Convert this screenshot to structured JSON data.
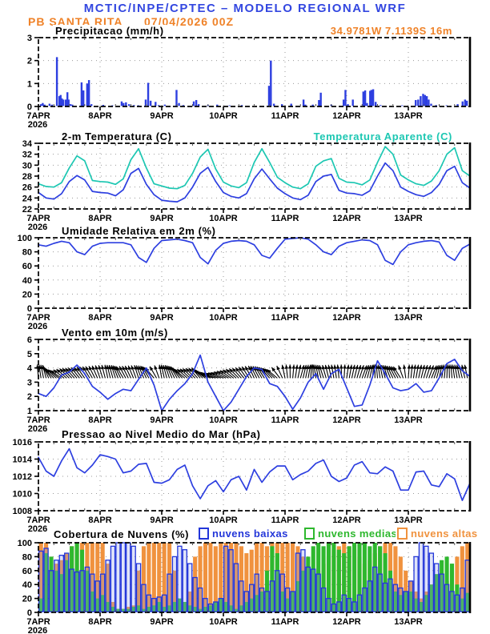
{
  "header": {
    "title": "MCTIC/INPE/CPTEC – MODELO REGIONAL WRF",
    "station": "PB SANTA RITA",
    "run": "07/04/2026 00Z"
  },
  "colors": {
    "header_blue": "#3347e0",
    "orange_text": "#ef8228",
    "line_blue": "#2d3fe0",
    "cyan": "#1cc7b2",
    "cloud_low_blue": "#2336d9",
    "cloud_mid_green": "#2eb82e",
    "cloud_high_orange": "#f0923e",
    "grid_gray": "#999999",
    "frame_black": "#000000"
  },
  "x_axis": {
    "tick_labels": [
      "7APR",
      "8APR",
      "9APR",
      "10APR",
      "11APR",
      "12APR",
      "13APR"
    ],
    "year": "2026",
    "days": 7
  },
  "chart_data": [
    {
      "id": "precipitation",
      "type": "bar",
      "title": "Precipitacao (mm/h)",
      "annotation": "34.9781W 7.1139S 16m",
      "ylim": [
        0,
        3
      ],
      "yticks": [
        0,
        1,
        2,
        3
      ],
      "bars_t_days_value_mmh": [
        [
          0.04,
          0.1
        ],
        [
          0.07,
          0.15
        ],
        [
          0.1,
          0.08
        ],
        [
          0.18,
          0.12
        ],
        [
          0.22,
          0.08
        ],
        [
          0.3,
          2.15
        ],
        [
          0.34,
          0.45
        ],
        [
          0.36,
          0.5
        ],
        [
          0.38,
          0.35
        ],
        [
          0.4,
          0.3
        ],
        [
          0.44,
          0.3
        ],
        [
          0.47,
          0.62
        ],
        [
          0.49,
          0.3
        ],
        [
          0.52,
          0.1
        ],
        [
          0.55,
          0.08
        ],
        [
          0.7,
          1.05
        ],
        [
          0.73,
          0.7
        ],
        [
          0.79,
          1.0
        ],
        [
          0.82,
          1.15
        ],
        [
          0.86,
          0.1
        ],
        [
          1.05,
          0.07
        ],
        [
          1.2,
          0.05
        ],
        [
          1.35,
          0.22
        ],
        [
          1.38,
          0.15
        ],
        [
          1.42,
          0.18
        ],
        [
          1.47,
          0.1
        ],
        [
          1.55,
          0.06
        ],
        [
          1.62,
          0.05
        ],
        [
          1.74,
          0.3
        ],
        [
          1.78,
          1.03
        ],
        [
          1.82,
          0.25
        ],
        [
          1.9,
          0.2
        ],
        [
          1.95,
          0.06
        ],
        [
          2.05,
          0.08
        ],
        [
          2.24,
          0.72
        ],
        [
          2.28,
          0.15
        ],
        [
          2.35,
          0.06
        ],
        [
          2.52,
          0.22
        ],
        [
          2.56,
          0.28
        ],
        [
          2.6,
          0.1
        ],
        [
          2.75,
          0.06
        ],
        [
          2.9,
          0.08
        ],
        [
          3.1,
          0.05
        ],
        [
          3.3,
          0.06
        ],
        [
          3.74,
          0.9
        ],
        [
          3.77,
          2.0
        ],
        [
          3.82,
          0.12
        ],
        [
          3.95,
          0.1
        ],
        [
          4.1,
          0.12
        ],
        [
          4.3,
          0.3
        ],
        [
          4.33,
          0.08
        ],
        [
          4.45,
          0.08
        ],
        [
          4.55,
          0.28
        ],
        [
          4.58,
          0.6
        ],
        [
          4.75,
          0.08
        ],
        [
          4.95,
          0.3
        ],
        [
          4.98,
          0.72
        ],
        [
          5.02,
          0.1
        ],
        [
          5.1,
          0.3
        ],
        [
          5.27,
          0.65
        ],
        [
          5.3,
          0.7
        ],
        [
          5.33,
          0.15
        ],
        [
          5.38,
          0.68
        ],
        [
          5.4,
          0.72
        ],
        [
          5.43,
          0.75
        ],
        [
          5.47,
          0.2
        ],
        [
          5.55,
          0.06
        ],
        [
          5.9,
          0.05
        ],
        [
          6.12,
          0.28
        ],
        [
          6.16,
          0.3
        ],
        [
          6.2,
          0.45
        ],
        [
          6.24,
          0.55
        ],
        [
          6.27,
          0.5
        ],
        [
          6.3,
          0.45
        ],
        [
          6.33,
          0.3
        ],
        [
          6.37,
          0.12
        ],
        [
          6.45,
          0.06
        ],
        [
          6.62,
          0.05
        ],
        [
          6.8,
          0.1
        ],
        [
          6.88,
          0.22
        ],
        [
          6.92,
          0.3
        ],
        [
          6.95,
          0.25
        ]
      ]
    },
    {
      "id": "temperature",
      "type": "line",
      "title": "2-m Temperatura (C)",
      "title2": "Temperatura Aparente (C)",
      "ylim": [
        22,
        34
      ],
      "yticks": [
        22,
        24,
        26,
        28,
        30,
        32,
        34
      ],
      "step_hours": 3,
      "series": [
        {
          "name": "2-m Temperatura (C)",
          "color": "line_blue",
          "values": [
            25.0,
            24.0,
            23.8,
            24.8,
            27.0,
            28.1,
            27.3,
            25.2,
            25.0,
            24.9,
            24.4,
            25.5,
            28.5,
            29.4,
            26.5,
            24.6,
            23.6,
            23.4,
            23.3,
            24.0,
            26.0,
            28.5,
            29.6,
            27.0,
            25.0,
            24.3,
            24.0,
            24.8,
            27.5,
            29.3,
            27.5,
            25.8,
            24.8,
            24.0,
            23.7,
            24.5,
            27.0,
            28.0,
            28.3,
            25.4,
            24.9,
            24.8,
            24.5,
            25.3,
            28.0,
            30.4,
            29.0,
            26.0,
            25.2,
            24.6,
            24.3,
            25.0,
            26.5,
            29.0,
            29.8,
            26.8,
            25.8
          ]
        },
        {
          "name": "Temperatura Aparente (C)",
          "color": "cyan",
          "values": [
            26.6,
            26.1,
            26.0,
            26.8,
            29.5,
            31.7,
            30.8,
            27.2,
            27.0,
            26.9,
            26.5,
            27.5,
            31.0,
            33.0,
            29.5,
            26.6,
            26.2,
            25.8,
            25.7,
            26.3,
            28.5,
            31.5,
            32.9,
            29.3,
            26.9,
            26.2,
            25.9,
            26.8,
            30.5,
            33.0,
            30.5,
            27.8,
            26.8,
            26.0,
            25.7,
            26.6,
            29.8,
            30.8,
            31.2,
            27.6,
            26.9,
            26.8,
            26.4,
            27.3,
            30.5,
            33.4,
            32.0,
            28.2,
            27.3,
            26.6,
            26.3,
            27.1,
            29.0,
            32.0,
            33.2,
            29.0,
            28.0
          ]
        }
      ]
    },
    {
      "id": "humidity",
      "type": "line",
      "title": "Umidade Relativa em 2m (%)",
      "ylim": [
        0,
        100
      ],
      "yticks": [
        0,
        20,
        40,
        60,
        80,
        100
      ],
      "step_hours": 3,
      "series": [
        {
          "name": "Umidade Relativa em 2m (%)",
          "color": "line_blue",
          "values": [
            90,
            88,
            92,
            95,
            93,
            80,
            76,
            88,
            92,
            93,
            93,
            93,
            90,
            72,
            65,
            85,
            96,
            97,
            98,
            96,
            93,
            72,
            63,
            82,
            92,
            95,
            96,
            95,
            90,
            75,
            71,
            85,
            98,
            99,
            100,
            98,
            90,
            80,
            76,
            88,
            93,
            95,
            97,
            96,
            90,
            68,
            62,
            80,
            90,
            93,
            95,
            96,
            94,
            75,
            68,
            85,
            91
          ]
        }
      ]
    },
    {
      "id": "wind",
      "type": "line",
      "title": "Vento em 10m (m/s)",
      "ylim": [
        1,
        6
      ],
      "yticks": [
        1,
        2,
        3,
        4,
        5,
        6
      ],
      "step_hours": 3,
      "arrow_baseline_value": 3.45,
      "arrow_angles_deg": [
        -5,
        -15,
        -45,
        -55,
        -45,
        -40,
        -35,
        -30,
        -20,
        -12,
        -18,
        -30,
        -25,
        -18,
        -25,
        -40,
        -10,
        -18,
        -30,
        -50,
        -45,
        -40,
        -60,
        -70,
        -65,
        -55,
        -45,
        -35,
        -25,
        -30,
        -40,
        -50,
        -12,
        5,
        15,
        10,
        -8,
        -18,
        -12,
        -6,
        8,
        14,
        20,
        12,
        -5,
        -15,
        -25,
        -32,
        4,
        10,
        16,
        22,
        12,
        2,
        -8,
        -14,
        -10
      ],
      "series": [
        {
          "name": "Vento em 10m (m/s)",
          "color": "line_blue",
          "values": [
            2.2,
            2.0,
            2.6,
            3.5,
            3.7,
            4.2,
            3.6,
            2.7,
            2.3,
            1.8,
            2.2,
            2.5,
            2.4,
            3.2,
            4.0,
            2.8,
            1.0,
            1.8,
            2.4,
            2.9,
            3.6,
            4.9,
            3.0,
            2.0,
            1.0,
            1.6,
            2.5,
            3.4,
            4.0,
            3.9,
            2.9,
            2.7,
            2.0,
            1.1,
            1.9,
            3.0,
            3.6,
            2.5,
            3.6,
            3.9,
            2.6,
            1.3,
            1.4,
            2.8,
            4.5,
            3.6,
            2.6,
            2.4,
            2.5,
            2.9,
            2.3,
            2.4,
            3.3,
            4.3,
            4.6,
            3.8,
            3.4
          ]
        }
      ]
    },
    {
      "id": "pressure",
      "type": "line",
      "title": "Pressao ao Nivel Medio do Mar (hPa)",
      "ylim": [
        1008,
        1016
      ],
      "yticks": [
        1008,
        1010,
        1012,
        1014,
        1016
      ],
      "step_hours": 3,
      "series": [
        {
          "name": "Pressao ao Nivel Medio do Mar (hPa)",
          "color": "line_blue",
          "values": [
            1014.2,
            1012.6,
            1012.0,
            1013.8,
            1015.2,
            1013.0,
            1012.4,
            1013.3,
            1014.5,
            1014.3,
            1014.0,
            1012.4,
            1012.6,
            1013.4,
            1013.5,
            1011.3,
            1011.2,
            1011.6,
            1012.8,
            1013.3,
            1010.9,
            1009.4,
            1010.9,
            1011.5,
            1010.2,
            1011.6,
            1012.0,
            1010.4,
            1012.8,
            1011.3,
            1012.5,
            1013.2,
            1013.2,
            1011.6,
            1012.2,
            1012.6,
            1013.5,
            1013.9,
            1012.0,
            1011.4,
            1011.8,
            1013.3,
            1013.7,
            1012.4,
            1012.3,
            1013.1,
            1012.6,
            1010.4,
            1010.4,
            1012.5,
            1012.6,
            1011.0,
            1010.8,
            1012.3,
            1011.7,
            1009.2,
            1011.2
          ]
        }
      ]
    },
    {
      "id": "cloud_cover",
      "type": "bar",
      "title": "Cobertura de Nuvens (%)",
      "ylim": [
        0,
        100
      ],
      "yticks": [
        0,
        20,
        40,
        60,
        80,
        100
      ],
      "step_hours": 2,
      "legend": [
        {
          "label": "nuvens baixas",
          "color": "cloud_low_blue",
          "style": "outline"
        },
        {
          "label": "nuvens medias",
          "color": "cloud_mid_green",
          "style": "fill"
        },
        {
          "label": "nuvens altas",
          "color": "cloud_high_orange",
          "style": "fill"
        }
      ],
      "series": [
        {
          "name": "nuvens baixas",
          "color": "cloud_low_blue",
          "style": "outline",
          "values": [
            88,
            92,
            60,
            75,
            82,
            85,
            62,
            58,
            60,
            65,
            55,
            45,
            55,
            75,
            95,
            100,
            100,
            100,
            95,
            70,
            40,
            25,
            20,
            22,
            25,
            55,
            80,
            95,
            90,
            70,
            50,
            35,
            20,
            12,
            15,
            20,
            95,
            90,
            70,
            45,
            30,
            40,
            55,
            35,
            30,
            45,
            60,
            55,
            35,
            30,
            85,
            90,
            65,
            62,
            55,
            35,
            20,
            12,
            15,
            25,
            20,
            15,
            25,
            35,
            45,
            65,
            55,
            42,
            48,
            40,
            35,
            30,
            45,
            80,
            100,
            95,
            85,
            70,
            55,
            40,
            30,
            25,
            35,
            75
          ]
        },
        {
          "name": "nuvens medias",
          "color": "cloud_mid_green",
          "style": "fill",
          "values": [
            20,
            85,
            80,
            60,
            55,
            75,
            95,
            100,
            90,
            60,
            30,
            20,
            25,
            15,
            8,
            5,
            5,
            5,
            8,
            10,
            5,
            8,
            10,
            15,
            8,
            10,
            15,
            20,
            15,
            10,
            8,
            5,
            8,
            10,
            15,
            20,
            15,
            10,
            5,
            10,
            15,
            20,
            25,
            30,
            60,
            95,
            85,
            30,
            20,
            30,
            45,
            60,
            80,
            95,
            100,
            95,
            100,
            100,
            90,
            85,
            95,
            100,
            100,
            100,
            95,
            100,
            95,
            85,
            60,
            30,
            25,
            30,
            30,
            20,
            15,
            25,
            40,
            55,
            75,
            80,
            70,
            40,
            20,
            28
          ]
        },
        {
          "name": "nuvens altas",
          "color": "cloud_high_orange",
          "style": "fill",
          "values": [
            100,
            100,
            80,
            70,
            75,
            85,
            95,
            100,
            100,
            100,
            100,
            100,
            100,
            70,
            15,
            5,
            5,
            8,
            10,
            60,
            95,
            100,
            100,
            100,
            100,
            100,
            60,
            10,
            5,
            30,
            80,
            95,
            100,
            100,
            95,
            100,
            100,
            100,
            100,
            95,
            85,
            90,
            100,
            100,
            95,
            100,
            100,
            100,
            100,
            100,
            95,
            80,
            65,
            55,
            60,
            70,
            80,
            90,
            95,
            100,
            95,
            90,
            80,
            70,
            75,
            85,
            95,
            100,
            100,
            95,
            80,
            60,
            45,
            30,
            20,
            30,
            40,
            35,
            30,
            45,
            60,
            80,
            95,
            100
          ]
        }
      ]
    }
  ]
}
